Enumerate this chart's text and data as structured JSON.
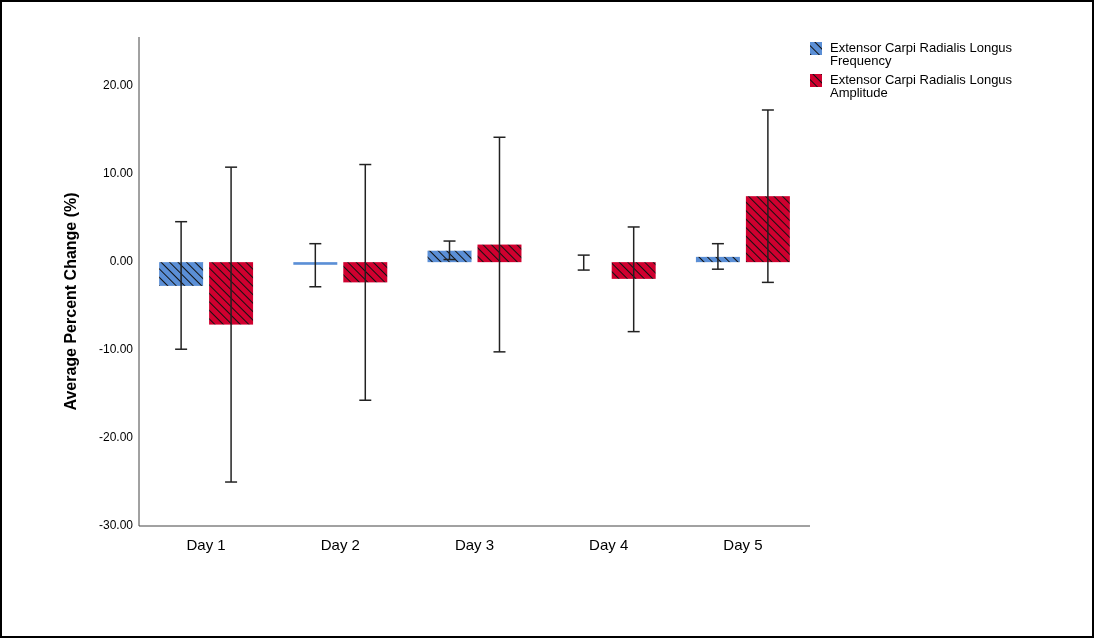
{
  "chart_data": {
    "type": "bar",
    "ylabel": "Average Percent Change (%)",
    "categories": [
      "Day 1",
      "Day 2",
      "Day 3",
      "Day 4",
      "Day 5"
    ],
    "series": [
      {
        "name": "Extensor Carpi Radialis Longus Frequency",
        "color": "#5b8fd6",
        "values": [
          -2.7,
          -0.3,
          1.3,
          0,
          0.6
        ],
        "errors": [
          [
            -9.9,
            4.6
          ],
          [
            -2.8,
            2.1
          ],
          [
            0.3,
            2.4
          ],
          [
            -0.9,
            0.8
          ],
          [
            -0.8,
            2.1
          ]
        ]
      },
      {
        "name": "Extensor Carpi Radialis Longus Amplitude",
        "color": "#d0002f",
        "values": [
          -7.1,
          -2.3,
          2.0,
          -1.9,
          7.5
        ],
        "errors": [
          [
            -25.0,
            10.8
          ],
          [
            -15.7,
            11.1
          ],
          [
            -10.2,
            14.2
          ],
          [
            -7.9,
            4.0
          ],
          [
            -2.3,
            17.3
          ]
        ]
      }
    ],
    "ylim": [
      -30,
      25.6
    ],
    "yticks": [
      {
        "value": -30,
        "label": "-30.00"
      },
      {
        "value": -20,
        "label": "-20.00"
      },
      {
        "value": -10,
        "label": "-10.00"
      },
      {
        "value": 0,
        "label": "0.00"
      },
      {
        "value": 10,
        "label": "10.00"
      },
      {
        "value": 20,
        "label": "20.00"
      }
    ],
    "legend": "top right",
    "grid": false
  }
}
